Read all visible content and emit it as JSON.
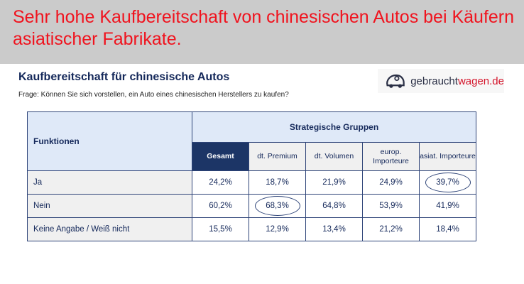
{
  "banner": {
    "headline": "Sehr hohe Kaufbereitschaft von chinesischen Autos bei Käufern asiatischer Fabrikate."
  },
  "header": {
    "title": "Kaufbereitschaft für chinesische Autos",
    "question": "Frage: Können Sie sich vorstellen, ein Auto eines chinesischen Herstellers zu kaufen?",
    "logo_part1": "gebraucht",
    "logo_part2": "wagen.de"
  },
  "table": {
    "row_header": "Funktionen",
    "group_header": "Strategische Gruppen",
    "columns": [
      "Gesamt",
      "dt. Premium",
      "dt. Volumen",
      "europ. Importeure",
      "asiat. Importeure"
    ],
    "rows": [
      {
        "label": "Ja",
        "values": [
          "24,2%",
          "18,7%",
          "21,9%",
          "24,9%",
          "39,7%"
        ],
        "highlighted": [
          4
        ]
      },
      {
        "label": "Nein",
        "values": [
          "60,2%",
          "68,3%",
          "64,8%",
          "53,9%",
          "41,9%"
        ],
        "highlighted": [
          1
        ]
      },
      {
        "label": "Keine Angabe / Weiß nicht",
        "values": [
          "15,5%",
          "12,9%",
          "13,4%",
          "21,2%",
          "18,4%"
        ],
        "highlighted": []
      }
    ]
  },
  "colors": {
    "headline": "#f0131e",
    "navy": "#1c3566"
  }
}
